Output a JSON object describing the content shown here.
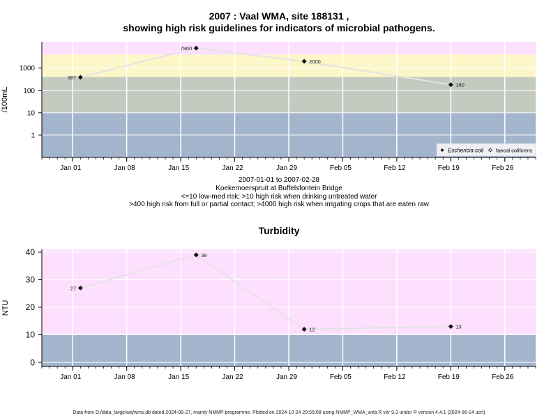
{
  "chart1": {
    "title_line1": "2007 : Vaal WMA, site 188131 ,",
    "title_line2": "showing high risk guidelines for indicators of microbial pathogens.",
    "caption": [
      "2007-01-01 to 2007-02-28",
      "Koekemoerspruit at Buffelsfontein Bridge",
      "<=10 low-med risk; >10 high risk when drinking untreated water",
      ">400 high risk from full or partial contact; >4000 high risk when irrigating crops that are eaten raw"
    ],
    "legend": [
      "Eschericia coli",
      "faecal coliforms"
    ]
  },
  "chart2": {
    "title": "Turbidity"
  },
  "footer": "Data from D:/data_large/wq/wms.db dated 2024-08-27, mainly NMMP programme. Plotted on 2024-10-24 20:55:08 using NMMP_WMA_web.R ver 9.3 under R version 4.4.1 (2024-06-14 ucrt)",
  "colors": {
    "band_blue": "#a3b4cd",
    "band_green": "#c3cbc1",
    "band_yellow": "#fdf6c8",
    "band_pink": "#fde0fd",
    "series_line": "#e3e3e3"
  },
  "chart_data": [
    {
      "type": "scatter",
      "title": "2007 : Vaal WMA, site 188131 , showing high risk guidelines for indicators of microbial pathogens.",
      "ylabel": "/100mL",
      "yscale": "log",
      "ylim": [
        0.1,
        15000
      ],
      "yticks": [
        "1",
        "10",
        "100",
        "1000"
      ],
      "xlim": [
        "2006-12-28",
        "2007-03-02"
      ],
      "xticks": [
        "Jan 01",
        "Jan 08",
        "Jan 15",
        "Jan 22",
        "Jan 29",
        "Feb 05",
        "Feb 12",
        "Feb 19",
        "Feb 26"
      ],
      "grid": true,
      "legend_position": "bottom-right",
      "bands": [
        {
          "from": 0.1,
          "to": 10,
          "color": "#a3b4cd"
        },
        {
          "from": 10,
          "to": 400,
          "color": "#c3cbc1"
        },
        {
          "from": 400,
          "to": 4000,
          "color": "#fdf6c8"
        },
        {
          "from": 4000,
          "to": 15000,
          "color": "#fde0fd"
        }
      ],
      "series": [
        {
          "name": "Eschericia coli",
          "x": [
            "2007-01-02",
            "2007-01-17",
            "2007-01-31",
            "2007-02-19"
          ],
          "y": [
            387,
            7800,
            2000,
            180
          ],
          "labels": [
            "387",
            "7800",
            "2000",
            "180"
          ]
        }
      ]
    },
    {
      "type": "scatter",
      "title": "Turbidity",
      "ylabel": "NTU",
      "ylim": [
        -1.5,
        41
      ],
      "yticks": [
        "0",
        "10",
        "20",
        "30",
        "40"
      ],
      "xlim": [
        "2006-12-28",
        "2007-03-02"
      ],
      "xticks": [
        "Jan 01",
        "Jan 08",
        "Jan 15",
        "Jan 22",
        "Jan 29",
        "Feb 05",
        "Feb 12",
        "Feb 19",
        "Feb 26"
      ],
      "grid": true,
      "bands": [
        {
          "from": -1.5,
          "to": 10,
          "color": "#a3b4cd"
        },
        {
          "from": 10,
          "to": 41,
          "color": "#fde0fd"
        }
      ],
      "series": [
        {
          "x": [
            "2007-01-02",
            "2007-01-17",
            "2007-01-31",
            "2007-02-19"
          ],
          "y": [
            27,
            39,
            12,
            13
          ],
          "labels": [
            "27",
            "39",
            "12",
            "13"
          ]
        }
      ]
    }
  ]
}
